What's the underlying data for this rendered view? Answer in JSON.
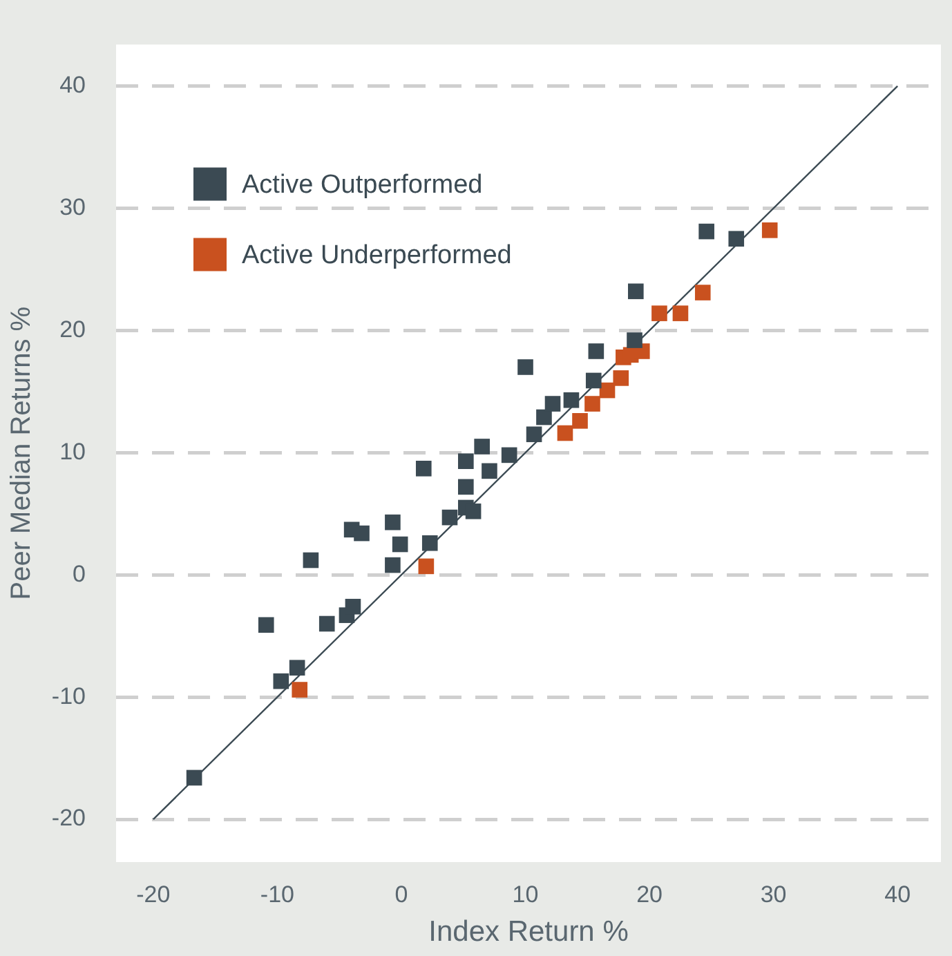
{
  "chart_data": {
    "type": "scatter",
    "xlabel": "Index Return %",
    "ylabel": "Peer Median Returns %",
    "xlim": [
      -23,
      43.5
    ],
    "ylim": [
      -23.5,
      43.4
    ],
    "xticks": [
      -20,
      -10,
      0,
      10,
      20,
      30,
      40
    ],
    "yticks": [
      -20,
      -10,
      0,
      10,
      20,
      30,
      40
    ],
    "grid": "y",
    "legend": "top left",
    "marker": "square",
    "series": [
      {
        "name": "Active Outperformed",
        "color": "#3b4a53",
        "x": [
          -16.7,
          -10.9,
          -9.7,
          -8.4,
          -7.3,
          -6.0,
          -4.4,
          -3.9,
          -4.0,
          -3.2,
          -0.7,
          -0.1,
          -0.7,
          2.3,
          1.8,
          3.9,
          5.2,
          5.2,
          5.2,
          6.5,
          7.1,
          5.8,
          8.7,
          10.0,
          10.7,
          11.5,
          12.2,
          13.7,
          15.5,
          15.7,
          18.8,
          18.9,
          24.6,
          27.0
        ],
        "values": [
          -16.6,
          -4.1,
          -8.7,
          -7.6,
          1.2,
          -4.0,
          -3.3,
          -2.6,
          3.7,
          3.4,
          4.3,
          2.5,
          0.8,
          2.6,
          8.7,
          4.7,
          5.5,
          7.2,
          9.3,
          10.5,
          8.5,
          5.2,
          9.8,
          17.0,
          11.5,
          12.9,
          14.0,
          14.3,
          15.9,
          18.3,
          19.2,
          23.2,
          28.1,
          27.5
        ]
      },
      {
        "name": "Active Underperformed",
        "color": "#c9511f",
        "x": [
          -8.2,
          2.0,
          13.2,
          14.4,
          15.4,
          16.6,
          17.7,
          17.9,
          18.5,
          19.4,
          20.8,
          22.5,
          24.3,
          29.7
        ],
        "values": [
          -9.4,
          0.7,
          11.6,
          12.6,
          14.0,
          15.1,
          16.1,
          17.8,
          18.0,
          18.3,
          21.4,
          21.4,
          23.1,
          28.2
        ]
      },
      {
        "type": "line",
        "color": "#3b4a53",
        "marker": "none",
        "x": [
          -20,
          40
        ],
        "values": [
          -20,
          40
        ]
      }
    ]
  }
}
